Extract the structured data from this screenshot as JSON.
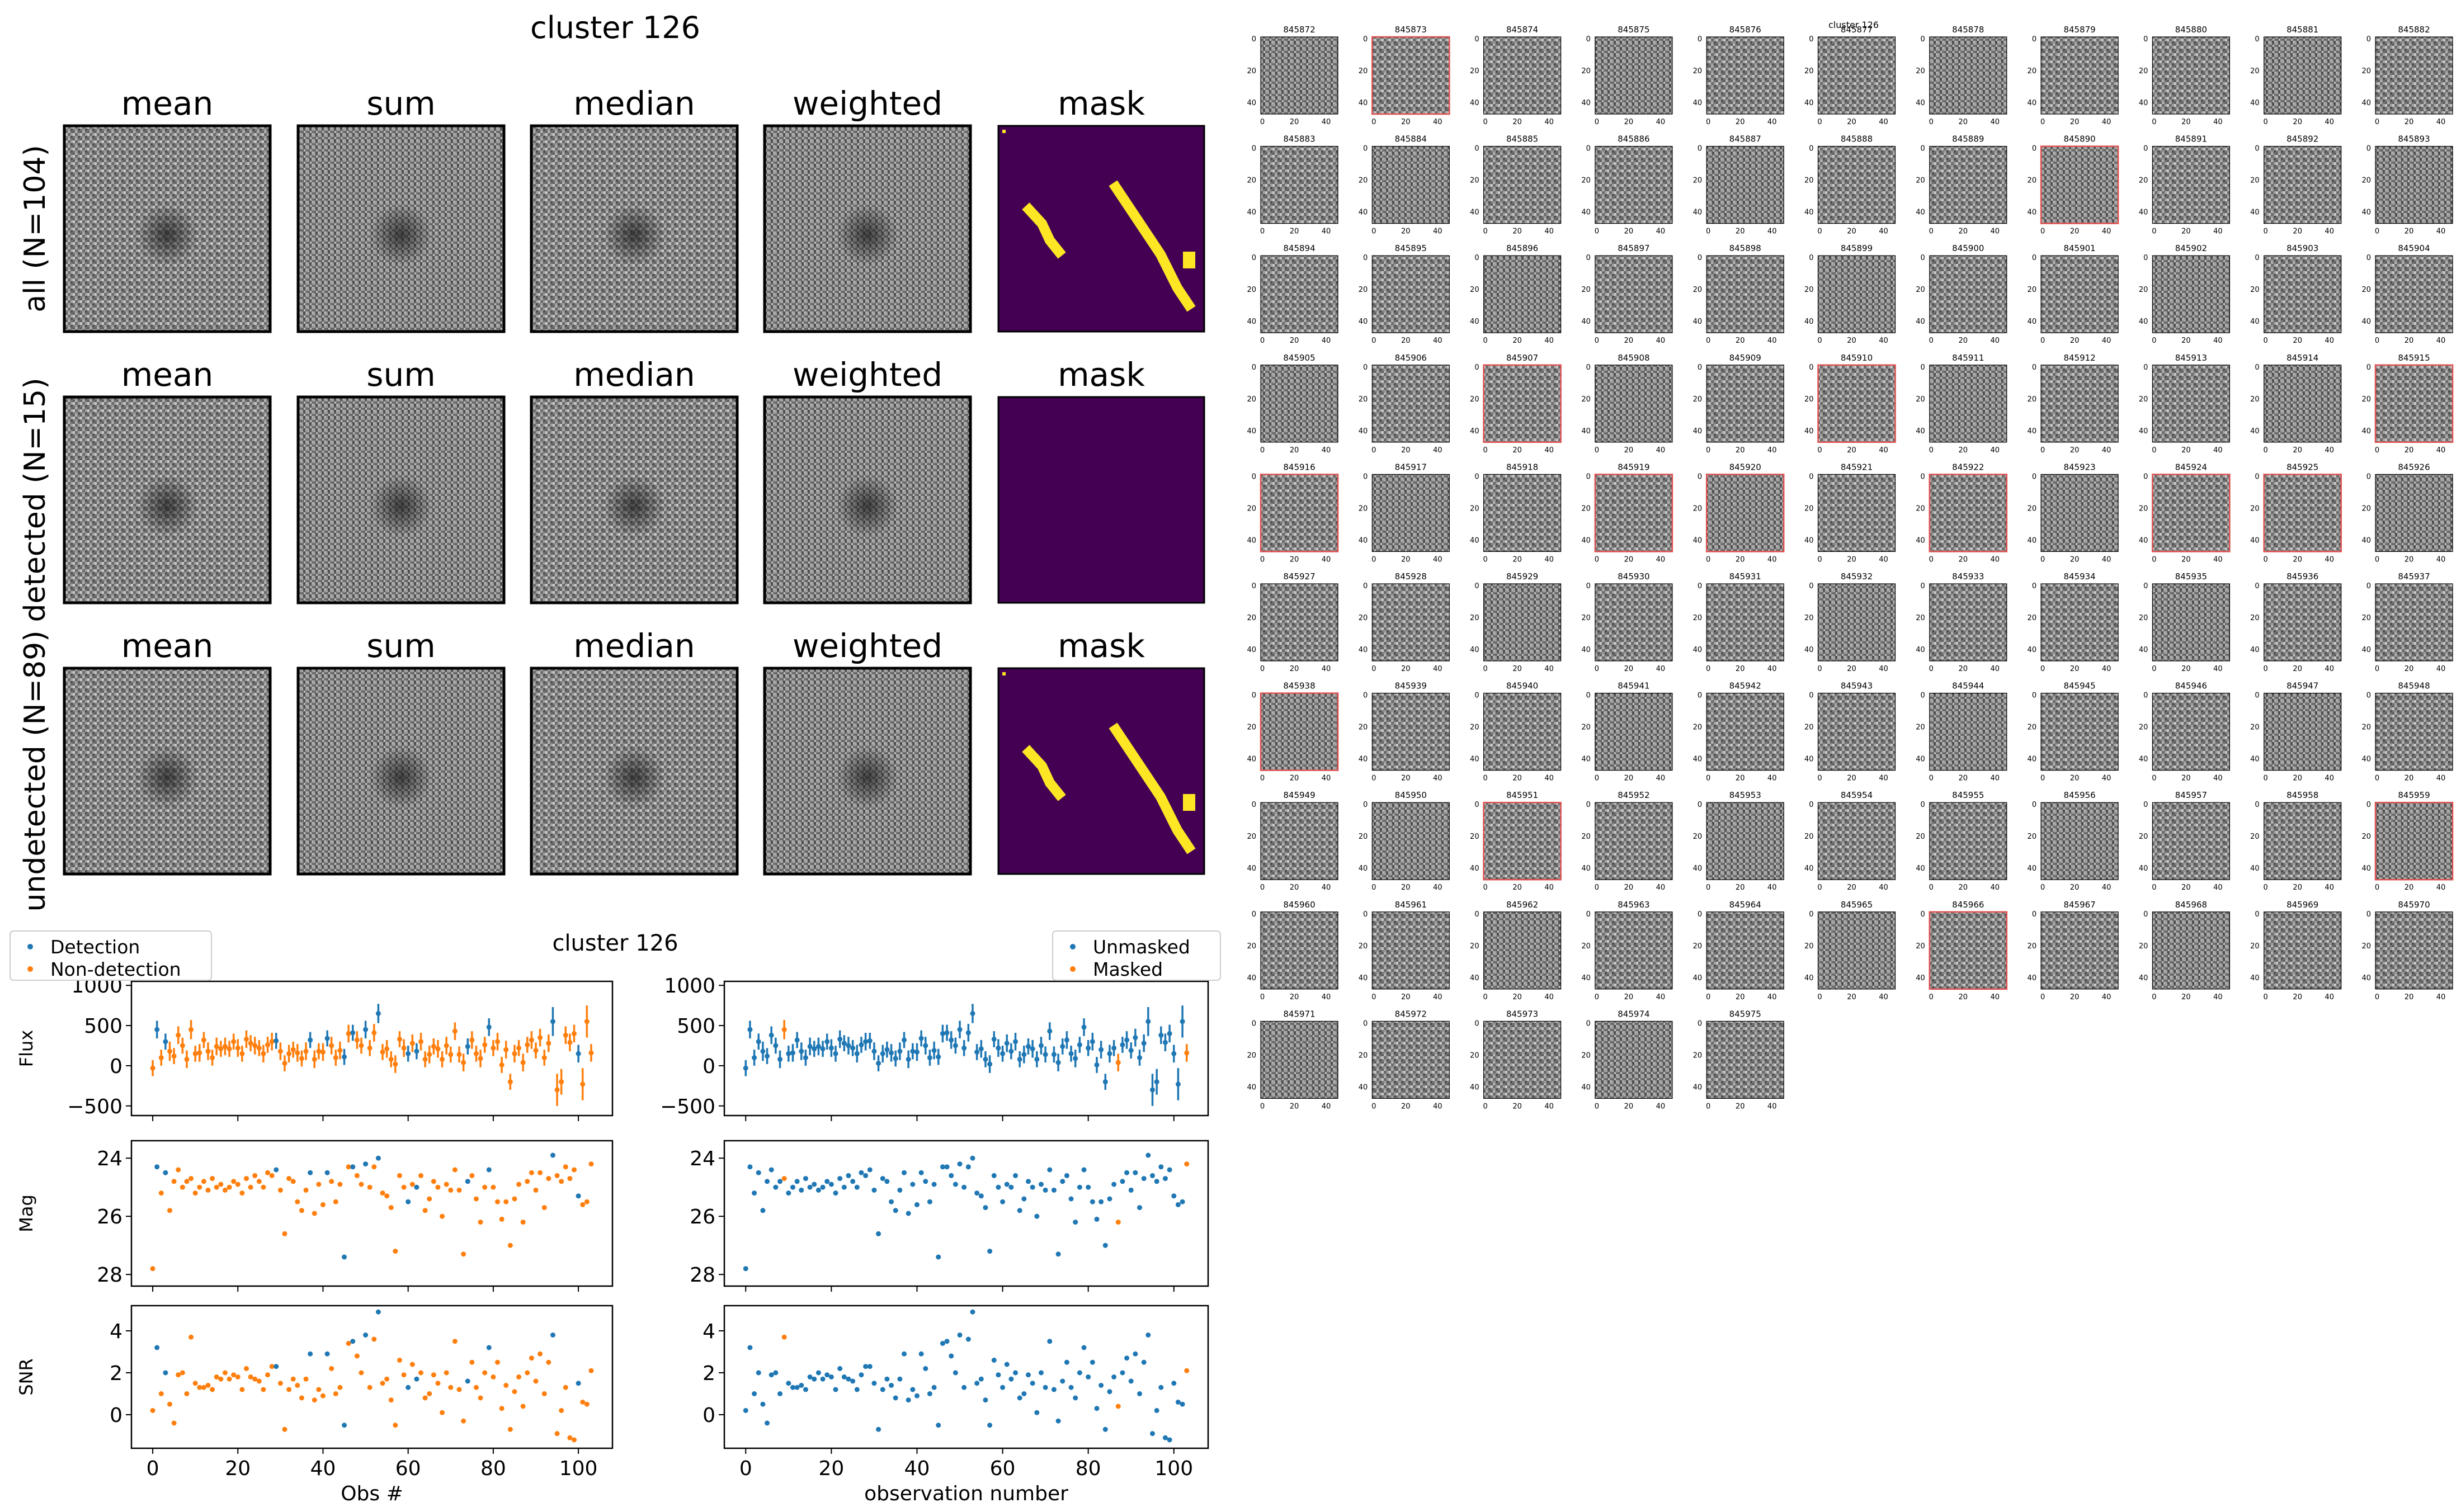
{
  "composite": {
    "title": "cluster 126",
    "column_titles": [
      "mean",
      "sum",
      "median",
      "weighted",
      "mask"
    ],
    "rows": [
      {
        "label": "all (N=104)",
        "mask_has_streaks": true
      },
      {
        "label": "detected (N=15)",
        "mask_has_streaks": false
      },
      {
        "label": "undetected (N=89)",
        "mask_has_streaks": true
      }
    ],
    "colors": {
      "mask_background": "#440154",
      "mask_foreground": "#fde725"
    }
  },
  "grid": {
    "title": "cluster 126",
    "ids": [
      "845872",
      "845873",
      "845874",
      "845875",
      "845876",
      "845877",
      "845878",
      "845879",
      "845880",
      "845881",
      "845882",
      "845883",
      "845884",
      "845885",
      "845886",
      "845887",
      "845888",
      "845889",
      "845890",
      "845891",
      "845892",
      "845893",
      "845894",
      "845895",
      "845896",
      "845897",
      "845898",
      "845899",
      "845900",
      "845901",
      "845902",
      "845903",
      "845904",
      "845905",
      "845906",
      "845907",
      "845908",
      "845909",
      "845910",
      "845911",
      "845912",
      "845913",
      "845914",
      "845915",
      "845916",
      "845917",
      "845918",
      "845919",
      "845920",
      "845921",
      "845922",
      "845923",
      "845924",
      "845925",
      "845926",
      "845927",
      "845928",
      "845929",
      "845930",
      "845931",
      "845932",
      "845933",
      "845934",
      "845935",
      "845936",
      "845937",
      "845938",
      "845939",
      "845940",
      "845941",
      "845942",
      "845943",
      "845944",
      "845945",
      "845946",
      "845947",
      "845948",
      "845949",
      "845950",
      "845951",
      "845952",
      "845953",
      "845954",
      "845955",
      "845956",
      "845957",
      "845958",
      "845959",
      "845960",
      "845961",
      "845962",
      "845963",
      "845964",
      "845965",
      "845966",
      "845967",
      "845968",
      "845969",
      "845970",
      "845971",
      "845972",
      "845973",
      "845974",
      "845975"
    ],
    "highlighted": [
      "845873",
      "845890",
      "845907",
      "845910",
      "845915",
      "845916",
      "845919",
      "845920",
      "845922",
      "845924",
      "845925",
      "845938",
      "845951",
      "845959",
      "845966"
    ],
    "y_ticks": [
      "0",
      "20",
      "40"
    ],
    "x_ticks": [
      "0",
      "20",
      "40"
    ],
    "colors": {
      "highlight": "#e05050"
    }
  },
  "chart_data": [
    {
      "type": "scatter",
      "title": "cluster 126",
      "panels": [
        "Flux",
        "Mag",
        "SNR"
      ],
      "xlabel": "Obs #",
      "xlim": [
        -5,
        108
      ],
      "x_ticks": [
        0,
        20,
        40,
        60,
        80,
        100
      ],
      "legend": {
        "placement": "top-left",
        "entries": [
          "Detection",
          "Non-detection"
        ]
      },
      "flux": {
        "ylabel": "Flux",
        "ylim": [
          -620,
          1050
        ],
        "ticks": [
          -500,
          0,
          500,
          1000
        ]
      },
      "mag": {
        "ylabel": "Mag",
        "ylim": [
          28.4,
          23.4
        ],
        "ticks": [
          24,
          26,
          28
        ]
      },
      "snr": {
        "ylabel": "SNR",
        "ylim": [
          -1.6,
          5.2
        ],
        "ticks": [
          0,
          2,
          4
        ]
      },
      "series": [
        {
          "name": "Detection",
          "color": "#1f77b4"
        },
        {
          "name": "Non-detection",
          "color": "#ff7f0e"
        }
      ]
    },
    {
      "type": "scatter",
      "panels": [
        "Flux",
        "Mag",
        "SNR"
      ],
      "xlabel": "observation number",
      "xlim": [
        -5,
        108
      ],
      "x_ticks": [
        0,
        20,
        40,
        60,
        80,
        100
      ],
      "legend": {
        "placement": "top-right",
        "entries": [
          "Unmasked",
          "Masked"
        ]
      },
      "series": [
        {
          "name": "Unmasked",
          "color": "#1f77b4"
        },
        {
          "name": "Masked",
          "color": "#ff7f0e"
        }
      ],
      "masked_indices": [
        9,
        87,
        103
      ]
    },
    {
      "observations": {
        "detected_indices": [
          1,
          3,
          29,
          37,
          41,
          45,
          47,
          50,
          53,
          60,
          62,
          74,
          79,
          94,
          100
        ],
        "flux": [
          -30,
          450,
          100,
          300,
          180,
          120,
          380,
          250,
          80,
          450,
          150,
          160,
          320,
          180,
          100,
          240,
          210,
          240,
          210,
          300,
          220,
          150,
          330,
          280,
          250,
          220,
          150,
          260,
          300,
          310,
          180,
          30,
          150,
          200,
          160,
          90,
          180,
          320,
          80,
          180,
          170,
          340,
          250,
          100,
          190,
          110,
          400,
          410,
          320,
          250,
          450,
          220,
          410,
          650,
          170,
          210,
          80,
          20,
          330,
          220,
          150,
          280,
          180,
          300,
          80,
          140,
          240,
          210,
          80,
          250,
          140,
          430,
          140,
          40,
          240,
          320,
          150,
          90,
          260,
          480,
          220,
          300,
          10,
          200,
          -200,
          150,
          220,
          40,
          260,
          320,
          190,
          350,
          100,
          280,
          550,
          -300,
          -200,
          380,
          290,
          400,
          150,
          -230,
          550,
          160
        ],
        "flux_err": [
          100,
          110,
          100,
          100,
          120,
          100,
          110,
          100,
          110,
          120,
          100,
          110,
          100,
          110,
          100,
          110,
          100,
          110,
          100,
          100,
          110,
          100,
          110,
          100,
          110,
          100,
          110,
          100,
          110,
          100,
          110,
          100,
          110,
          100,
          110,
          100,
          110,
          100,
          110,
          100,
          110,
          100,
          110,
          100,
          110,
          100,
          110,
          100,
          110,
          100,
          110,
          100,
          110,
          120,
          100,
          110,
          100,
          110,
          100,
          110,
          100,
          110,
          100,
          110,
          100,
          110,
          100,
          110,
          100,
          110,
          100,
          110,
          100,
          110,
          100,
          110,
          100,
          110,
          100,
          110,
          100,
          110,
          100,
          110,
          100,
          110,
          100,
          110,
          100,
          110,
          100,
          110,
          100,
          110,
          180,
          200,
          160,
          110,
          110,
          110,
          110,
          200,
          200,
          110
        ],
        "mag": [
          27.8,
          24.3,
          25.2,
          24.5,
          25.8,
          24.8,
          24.4,
          25.0,
          24.8,
          24.7,
          25.2,
          25.0,
          24.8,
          25.1,
          24.7,
          25.0,
          24.9,
          25.1,
          25.0,
          24.8,
          24.9,
          25.2,
          24.7,
          25.0,
          24.6,
          24.8,
          25.0,
          24.5,
          24.6,
          24.4,
          25.1,
          26.6,
          24.7,
          24.8,
          25.5,
          25.8,
          25.1,
          24.5,
          25.9,
          24.9,
          25.6,
          24.5,
          24.8,
          25.5,
          24.9,
          27.4,
          24.3,
          24.3,
          24.6,
          24.9,
          24.2,
          25.0,
          24.3,
          24.0,
          25.2,
          25.3,
          25.7,
          27.2,
          24.6,
          25.0,
          25.5,
          24.9,
          25.0,
          24.6,
          25.8,
          25.4,
          24.8,
          25.0,
          26.0,
          24.9,
          25.1,
          24.4,
          25.1,
          27.3,
          24.8,
          24.6,
          25.4,
          26.2,
          25.0,
          24.4,
          25.0,
          25.5,
          26.1,
          25.5,
          27.0,
          25.4,
          24.9,
          26.2,
          24.8,
          24.5,
          25.1,
          24.5,
          25.7,
          24.7,
          23.9,
          24.6,
          24.8,
          24.3,
          24.7,
          24.4,
          25.3,
          25.6,
          25.5,
          24.2
        ],
        "snr": [
          0.2,
          3.2,
          1.0,
          2.0,
          0.5,
          -0.4,
          1.9,
          2.0,
          1.0,
          3.7,
          1.5,
          1.3,
          1.3,
          1.4,
          1.2,
          1.8,
          1.7,
          2.0,
          1.7,
          1.9,
          1.8,
          1.2,
          2.2,
          1.8,
          1.7,
          1.6,
          1.2,
          1.9,
          2.3,
          2.3,
          1.5,
          -0.7,
          1.2,
          1.7,
          1.4,
          0.8,
          1.7,
          2.9,
          0.7,
          1.2,
          0.9,
          2.9,
          2.2,
          1.0,
          1.3,
          -0.5,
          3.4,
          3.5,
          2.8,
          2.0,
          3.8,
          1.3,
          3.6,
          4.9,
          1.5,
          1.7,
          0.7,
          -0.5,
          2.6,
          1.9,
          1.3,
          2.4,
          1.7,
          2.0,
          0.8,
          1.0,
          1.9,
          1.5,
          0.1,
          2.0,
          1.3,
          3.5,
          1.2,
          -0.3,
          1.6,
          2.5,
          1.3,
          0.8,
          2.0,
          3.2,
          1.8,
          2.5,
          0.3,
          1.4,
          -0.7,
          1.1,
          1.8,
          0.4,
          2.0,
          2.7,
          1.6,
          2.9,
          1.0,
          2.5,
          3.8,
          -0.9,
          0.2,
          1.3,
          -1.1,
          -1.2,
          1.5,
          0.6,
          0.5,
          2.1
        ]
      }
    }
  ]
}
